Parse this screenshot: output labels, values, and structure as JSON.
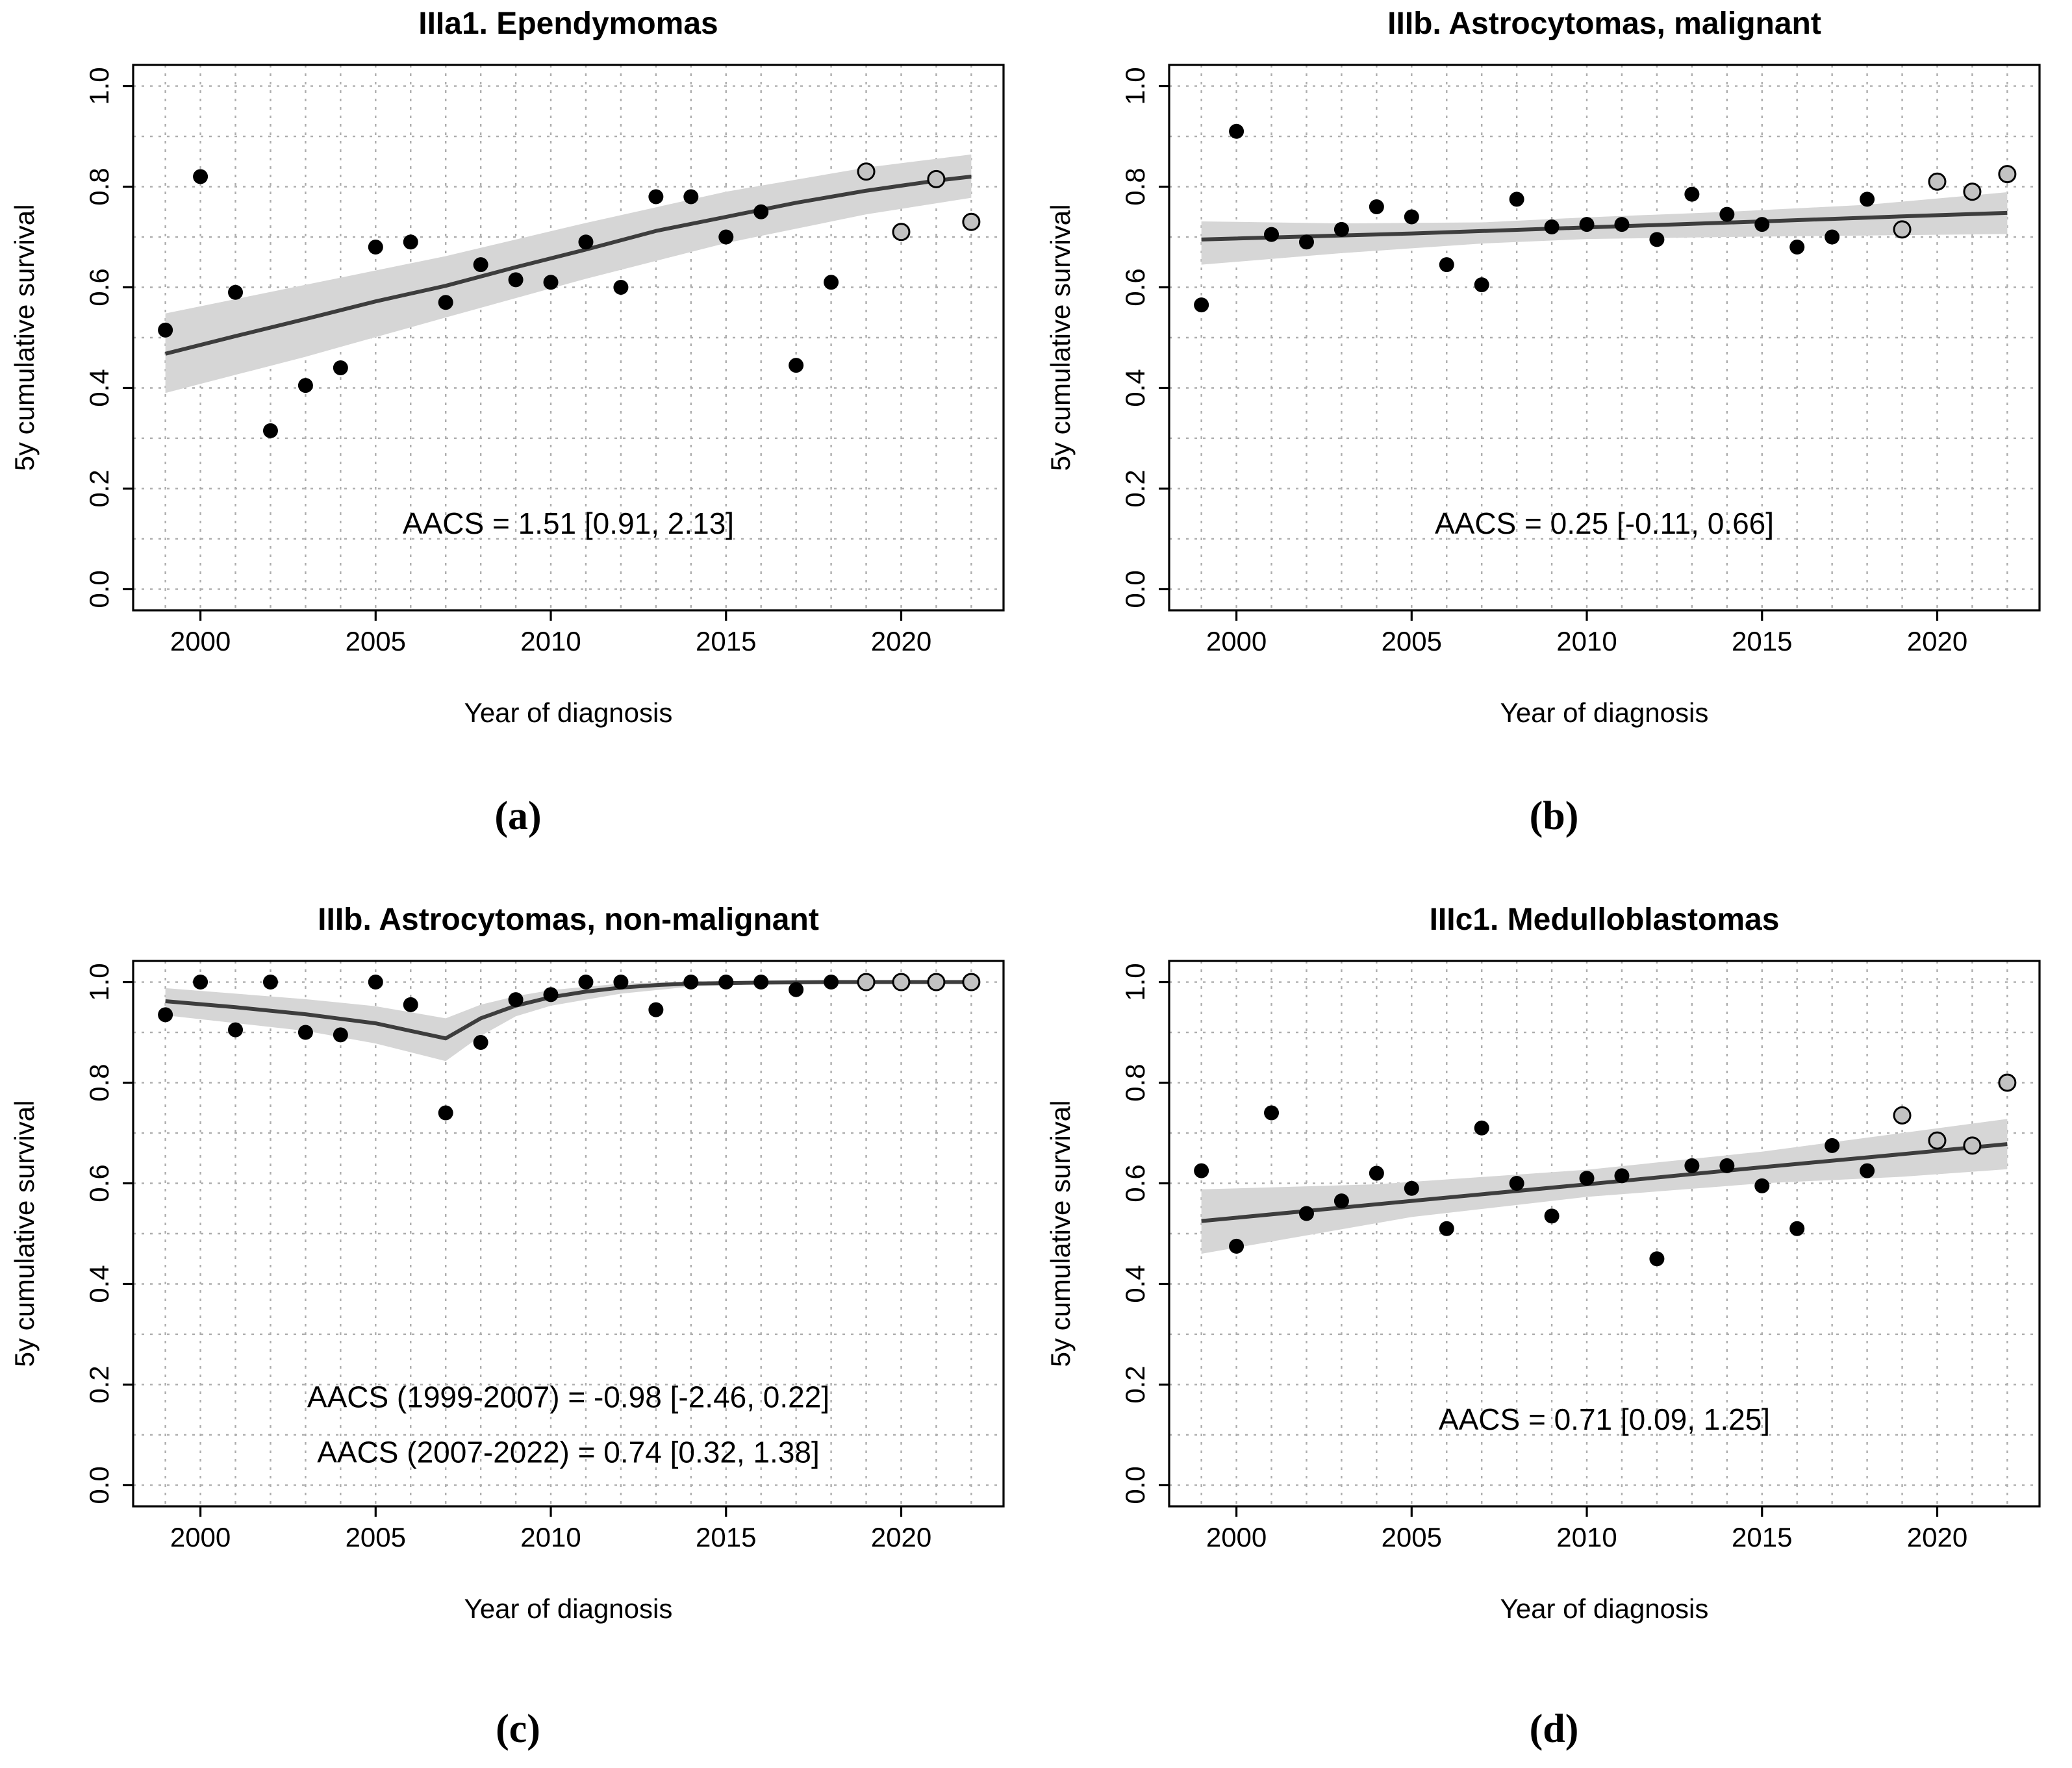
{
  "figure": {
    "style": {
      "background": "#ffffff",
      "frame_color": "#000000",
      "grid_color": "#adadad",
      "band_color": "#d6d6d6",
      "trend_color": "#3d3d3d",
      "point_closed_color": "#000000",
      "point_open_fill": "#c2c2c2",
      "point_open_stroke": "#000000",
      "text_color": "#000000"
    }
  },
  "chart_data": [
    {
      "type": "scatter",
      "panel_letter": "(a)",
      "title": "IIIa1. Ependymomas",
      "xlabel": "Year of diagnosis",
      "ylabel": "5y cumulative survival",
      "x_ticks": [
        2000,
        2005,
        2010,
        2015,
        2020
      ],
      "y_ticks": [
        0.0,
        0.2,
        0.4,
        0.6,
        0.8,
        1.0
      ],
      "xlim": [
        1998.08,
        2022.92
      ],
      "ylim": [
        -0.042,
        1.042
      ],
      "grid": "dotted every 1 year and every 0.1 survival",
      "legend": "none",
      "annotations": [
        {
          "text": "AACS = 1.51 [0.91, 2.13]",
          "y": 0.11
        }
      ],
      "points": {
        "years": [
          1999,
          2000,
          2001,
          2002,
          2003,
          2004,
          2005,
          2006,
          2007,
          2008,
          2009,
          2010,
          2011,
          2012,
          2013,
          2014,
          2015,
          2016,
          2017,
          2018,
          2019,
          2020,
          2021,
          2022
        ],
        "values": [
          0.515,
          0.82,
          0.59,
          0.315,
          0.405,
          0.44,
          0.68,
          0.69,
          0.57,
          0.645,
          0.615,
          0.61,
          0.69,
          0.6,
          0.78,
          0.78,
          0.7,
          0.75,
          0.445,
          0.61,
          0.83,
          0.71,
          0.815,
          0.73
        ],
        "open_gray_years": [
          2019,
          2020,
          2021,
          2022
        ]
      },
      "trend": [
        [
          1999,
          0.468
        ],
        [
          2001,
          0.503
        ],
        [
          2003,
          0.537
        ],
        [
          2005,
          0.572
        ],
        [
          2007,
          0.603
        ],
        [
          2009,
          0.64
        ],
        [
          2011,
          0.675
        ],
        [
          2013,
          0.712
        ],
        [
          2015,
          0.74
        ],
        [
          2017,
          0.768
        ],
        [
          2019,
          0.792
        ],
        [
          2021,
          0.812
        ],
        [
          2022,
          0.82
        ]
      ],
      "ci_band": {
        "lower": [
          [
            1999,
            0.39
          ],
          [
            2003,
            0.462
          ],
          [
            2007,
            0.54
          ],
          [
            2011,
            0.617
          ],
          [
            2015,
            0.688
          ],
          [
            2019,
            0.745
          ],
          [
            2022,
            0.778
          ]
        ],
        "upper": [
          [
            1999,
            0.548
          ],
          [
            2003,
            0.605
          ],
          [
            2007,
            0.662
          ],
          [
            2011,
            0.728
          ],
          [
            2015,
            0.79
          ],
          [
            2019,
            0.838
          ],
          [
            2022,
            0.864
          ]
        ]
      }
    },
    {
      "type": "scatter",
      "panel_letter": "(b)",
      "title": "IIIb. Astrocytomas, malignant",
      "xlabel": "Year of diagnosis",
      "ylabel": "5y cumulative survival",
      "x_ticks": [
        2000,
        2005,
        2010,
        2015,
        2020
      ],
      "y_ticks": [
        0.0,
        0.2,
        0.4,
        0.6,
        0.8,
        1.0
      ],
      "xlim": [
        1998.08,
        2022.92
      ],
      "ylim": [
        -0.042,
        1.042
      ],
      "grid": "dotted every 1 year and every 0.1 survival",
      "legend": "none",
      "annotations": [
        {
          "text": "AACS = 0.25 [-0.11, 0.66]",
          "y": 0.11
        }
      ],
      "points": {
        "years": [
          1999,
          2000,
          2001,
          2002,
          2003,
          2004,
          2005,
          2006,
          2007,
          2008,
          2009,
          2010,
          2011,
          2012,
          2013,
          2014,
          2015,
          2016,
          2017,
          2018,
          2019,
          2020,
          2021,
          2022
        ],
        "values": [
          0.565,
          0.91,
          0.705,
          0.69,
          0.715,
          0.76,
          0.74,
          0.645,
          0.605,
          0.775,
          0.72,
          0.725,
          0.725,
          0.695,
          0.785,
          0.745,
          0.725,
          0.68,
          0.7,
          0.775,
          0.715,
          0.81,
          0.79,
          0.825
        ],
        "open_gray_years": [
          2019,
          2020,
          2021,
          2022
        ]
      },
      "trend": [
        [
          1999,
          0.695
        ],
        [
          2005,
          0.707
        ],
        [
          2010,
          0.719
        ],
        [
          2015,
          0.731
        ],
        [
          2019,
          0.741
        ],
        [
          2022,
          0.748
        ]
      ],
      "ci_band": {
        "lower": [
          [
            1999,
            0.645
          ],
          [
            2003,
            0.668
          ],
          [
            2007,
            0.687
          ],
          [
            2010,
            0.696
          ],
          [
            2014,
            0.7
          ],
          [
            2018,
            0.703
          ],
          [
            2022,
            0.706
          ]
        ],
        "upper": [
          [
            1999,
            0.731
          ],
          [
            2003,
            0.727
          ],
          [
            2007,
            0.729
          ],
          [
            2010,
            0.739
          ],
          [
            2014,
            0.75
          ],
          [
            2018,
            0.764
          ],
          [
            2022,
            0.789
          ]
        ]
      }
    },
    {
      "type": "scatter",
      "panel_letter": "(c)",
      "title": "IIIb. Astrocytomas, non-malignant",
      "xlabel": "Year of diagnosis",
      "ylabel": "5y cumulative survival",
      "x_ticks": [
        2000,
        2005,
        2010,
        2015,
        2020
      ],
      "y_ticks": [
        0.0,
        0.2,
        0.4,
        0.6,
        0.8,
        1.0
      ],
      "xlim": [
        1998.08,
        2022.92
      ],
      "ylim": [
        -0.042,
        1.042
      ],
      "grid": "dotted every 1 year and every 0.1 survival",
      "legend": "none",
      "annotations": [
        {
          "text": "AACS (1999-2007) = -0.98 [-2.46, 0.22]",
          "y": 0.155
        },
        {
          "text": "AACS (2007-2022) = 0.74 [0.32, 1.38]",
          "y": 0.045
        }
      ],
      "points": {
        "years": [
          1999,
          2000,
          2001,
          2002,
          2003,
          2004,
          2005,
          2006,
          2007,
          2008,
          2009,
          2010,
          2011,
          2012,
          2013,
          2014,
          2015,
          2016,
          2017,
          2018,
          2019,
          2020,
          2021,
          2022
        ],
        "values": [
          0.935,
          1.0,
          0.905,
          1.0,
          0.9,
          0.895,
          1.0,
          0.955,
          0.74,
          0.88,
          0.965,
          0.975,
          1.0,
          1.0,
          0.945,
          1.0,
          1.0,
          1.0,
          0.985,
          1.0,
          1.0,
          1.0,
          1.0,
          1.0
        ],
        "open_gray_years": [
          2019,
          2020,
          2021,
          2022
        ]
      },
      "trend": [
        [
          1999,
          0.962
        ],
        [
          2001,
          0.95
        ],
        [
          2003,
          0.936
        ],
        [
          2005,
          0.918
        ],
        [
          2007,
          0.888
        ],
        [
          2008,
          0.928
        ],
        [
          2009,
          0.953
        ],
        [
          2010,
          0.97
        ],
        [
          2011,
          0.981
        ],
        [
          2012,
          0.989
        ],
        [
          2013,
          0.994
        ],
        [
          2014,
          0.997
        ],
        [
          2016,
          0.999
        ],
        [
          2018,
          1.0
        ],
        [
          2022,
          1.0
        ]
      ],
      "ci_band": {
        "lower": [
          [
            1999,
            0.934
          ],
          [
            2003,
            0.903
          ],
          [
            2005,
            0.878
          ],
          [
            2007,
            0.843
          ],
          [
            2008,
            0.893
          ],
          [
            2009,
            0.932
          ],
          [
            2010,
            0.953
          ],
          [
            2012,
            0.977
          ],
          [
            2014,
            0.991
          ],
          [
            2016,
            0.996
          ],
          [
            2018,
            0.998
          ],
          [
            2022,
            0.998
          ]
        ],
        "upper": [
          [
            1999,
            0.988
          ],
          [
            2003,
            0.966
          ],
          [
            2005,
            0.952
          ],
          [
            2007,
            0.928
          ],
          [
            2008,
            0.955
          ],
          [
            2009,
            0.972
          ],
          [
            2010,
            0.984
          ],
          [
            2012,
            0.997
          ],
          [
            2014,
            1.001
          ],
          [
            2016,
            1.002
          ],
          [
            2018,
            1.002
          ],
          [
            2022,
            1.002
          ]
        ]
      }
    },
    {
      "type": "scatter",
      "panel_letter": "(d)",
      "title": "IIIc1. Medulloblastomas",
      "xlabel": "Year of diagnosis",
      "ylabel": "5y cumulative survival",
      "x_ticks": [
        2000,
        2005,
        2010,
        2015,
        2020
      ],
      "y_ticks": [
        0.0,
        0.2,
        0.4,
        0.6,
        0.8,
        1.0
      ],
      "xlim": [
        1998.08,
        2022.92
      ],
      "ylim": [
        -0.042,
        1.042
      ],
      "grid": "dotted every 1 year and every 0.1 survival",
      "legend": "none",
      "annotations": [
        {
          "text": "AACS = 0.71 [0.09, 1.25]",
          "y": 0.11
        }
      ],
      "points": {
        "years": [
          1999,
          2000,
          2001,
          2002,
          2003,
          2004,
          2005,
          2006,
          2007,
          2008,
          2009,
          2010,
          2011,
          2012,
          2013,
          2014,
          2015,
          2016,
          2017,
          2018,
          2019,
          2020,
          2021,
          2022
        ],
        "values": [
          0.625,
          0.475,
          0.74,
          0.54,
          0.565,
          0.62,
          0.59,
          0.51,
          0.71,
          0.6,
          0.535,
          0.61,
          0.615,
          0.45,
          0.635,
          0.635,
          0.595,
          0.51,
          0.675,
          0.625,
          0.735,
          0.685,
          0.675,
          0.8
        ],
        "open_gray_years": [
          2019,
          2020,
          2021,
          2022
        ]
      },
      "trend": [
        [
          1999,
          0.525
        ],
        [
          2005,
          0.565
        ],
        [
          2010,
          0.598
        ],
        [
          2015,
          0.632
        ],
        [
          2019,
          0.658
        ],
        [
          2022,
          0.678
        ]
      ],
      "ci_band": {
        "lower": [
          [
            1999,
            0.46
          ],
          [
            2005,
            0.533
          ],
          [
            2010,
            0.573
          ],
          [
            2015,
            0.6
          ],
          [
            2019,
            0.613
          ],
          [
            2022,
            0.628
          ]
        ],
        "upper": [
          [
            1999,
            0.588
          ],
          [
            2004,
            0.598
          ],
          [
            2010,
            0.627
          ],
          [
            2015,
            0.663
          ],
          [
            2019,
            0.7
          ],
          [
            2022,
            0.728
          ]
        ]
      }
    }
  ]
}
